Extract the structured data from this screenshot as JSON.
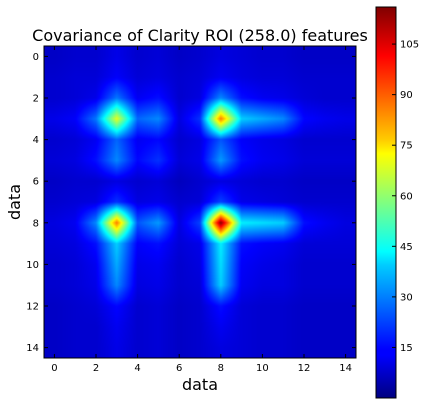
{
  "chart_data": {
    "type": "heatmap",
    "title": "Covariance of Clarity ROI (258.0) features",
    "xlabel": "data",
    "ylabel": "data",
    "colormap": "jet",
    "interpolation": "bilinear",
    "xlim": [
      -0.5,
      14.5
    ],
    "ylim": [
      14.5,
      -0.5
    ],
    "x_ticks": [
      0,
      2,
      4,
      6,
      8,
      10,
      12,
      14
    ],
    "y_ticks": [
      0,
      2,
      4,
      6,
      8,
      10,
      12,
      14
    ],
    "x_tick_labels": [
      "0",
      "2",
      "4",
      "6",
      "8",
      "10",
      "12",
      "14"
    ],
    "y_tick_labels": [
      "0",
      "2",
      "4",
      "6",
      "8",
      "10",
      "12",
      "14"
    ],
    "colorbar": {
      "range": [
        0,
        116
      ],
      "ticks": [
        15,
        30,
        45,
        60,
        75,
        90,
        105
      ],
      "tick_labels": [
        "15",
        "30",
        "45",
        "60",
        "75",
        "90",
        "105"
      ]
    },
    "rows": 15,
    "cols": 15,
    "values": [
      [
        8,
        9,
        9,
        12,
        9,
        10,
        8,
        9,
        11,
        10,
        9,
        9,
        8,
        8,
        8
      ],
      [
        9,
        10,
        10,
        14,
        10,
        11,
        9,
        10,
        13,
        11,
        10,
        10,
        9,
        9,
        9
      ],
      [
        9,
        10,
        12,
        28,
        13,
        16,
        9,
        11,
        30,
        16,
        13,
        12,
        10,
        9,
        9
      ],
      [
        12,
        14,
        28,
        70,
        26,
        30,
        11,
        20,
        88,
        38,
        34,
        30,
        15,
        13,
        12
      ],
      [
        9,
        10,
        13,
        26,
        13,
        15,
        9,
        11,
        24,
        14,
        12,
        11,
        9,
        9,
        9
      ],
      [
        10,
        11,
        16,
        30,
        15,
        20,
        10,
        12,
        32,
        16,
        13,
        12,
        10,
        10,
        10
      ],
      [
        8,
        9,
        9,
        11,
        9,
        10,
        7,
        9,
        11,
        10,
        9,
        9,
        8,
        8,
        8
      ],
      [
        9,
        10,
        11,
        20,
        11,
        12,
        9,
        10,
        22,
        12,
        11,
        10,
        9,
        9,
        9
      ],
      [
        11,
        13,
        30,
        88,
        24,
        32,
        11,
        22,
        116,
        42,
        40,
        38,
        16,
        13,
        11
      ],
      [
        10,
        11,
        16,
        38,
        14,
        16,
        10,
        12,
        42,
        16,
        14,
        13,
        10,
        10,
        10
      ],
      [
        9,
        10,
        13,
        34,
        12,
        13,
        9,
        11,
        40,
        14,
        12,
        11,
        9,
        9,
        9
      ],
      [
        9,
        10,
        12,
        30,
        11,
        12,
        9,
        10,
        38,
        13,
        11,
        11,
        9,
        9,
        9
      ],
      [
        8,
        9,
        10,
        15,
        9,
        10,
        8,
        9,
        16,
        10,
        9,
        9,
        8,
        8,
        8
      ],
      [
        8,
        9,
        9,
        13,
        9,
        10,
        8,
        9,
        13,
        10,
        9,
        9,
        8,
        8,
        8
      ],
      [
        8,
        9,
        9,
        12,
        9,
        10,
        8,
        9,
        11,
        10,
        9,
        9,
        8,
        8,
        8
      ]
    ]
  }
}
